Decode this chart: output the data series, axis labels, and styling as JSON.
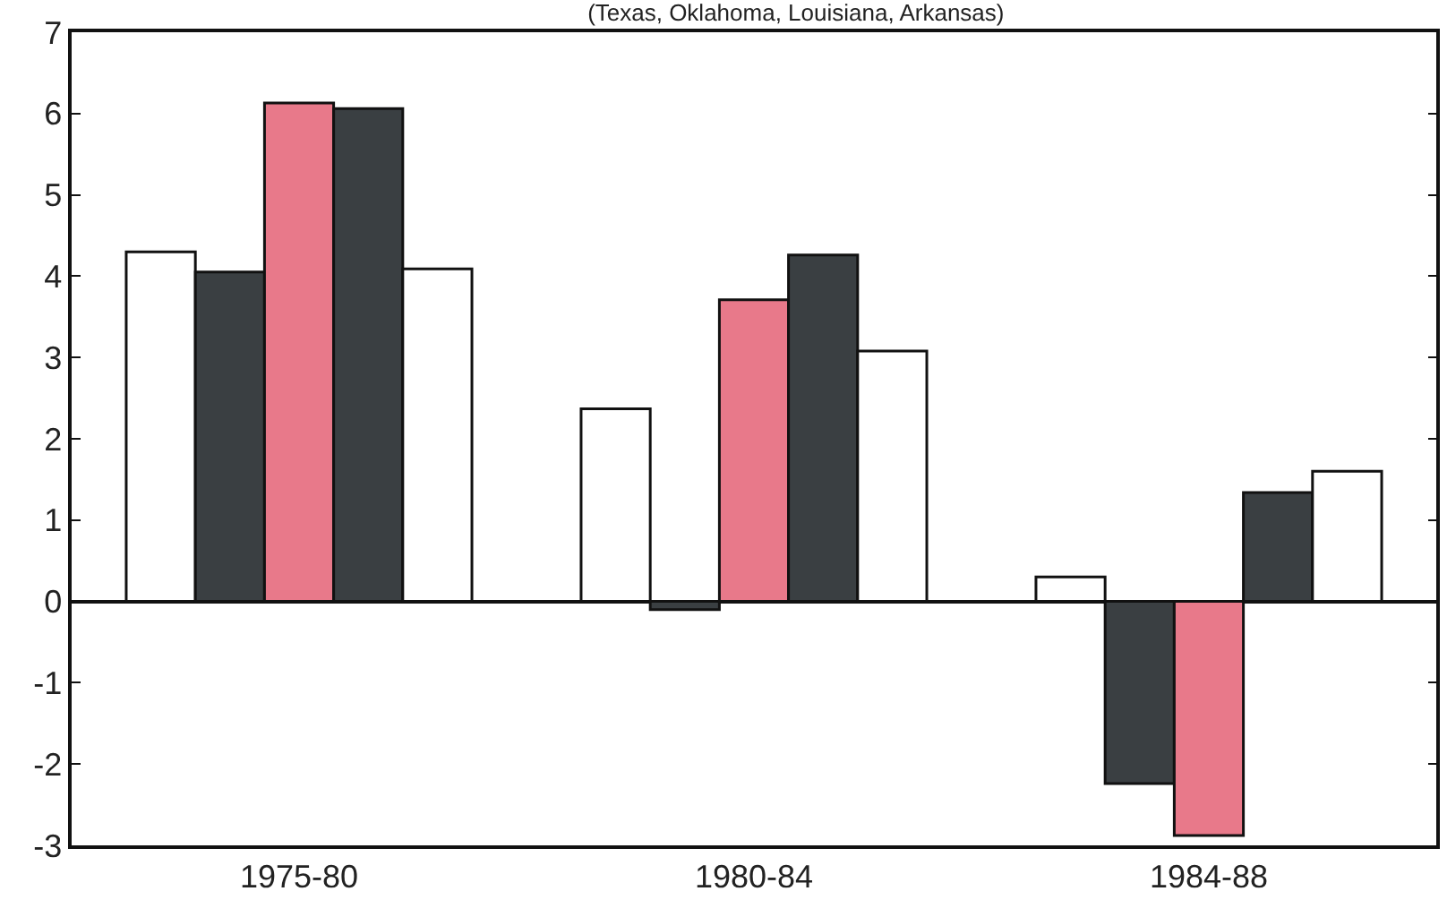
{
  "chart_data": {
    "type": "bar",
    "title": "(Texas, Oklahoma, Louisiana, Arkansas)",
    "categories": [
      "1975-80",
      "1980-84",
      "1984-88"
    ],
    "series": [
      {
        "color": "#ffffff",
        "values": [
          4.3,
          2.37,
          0.3
        ]
      },
      {
        "color": "#3a3f42",
        "values": [
          4.05,
          -0.1,
          -2.24
        ]
      },
      {
        "color": "#e8798a",
        "values": [
          6.13,
          3.71,
          -2.88
        ]
      },
      {
        "color": "#3a3f42",
        "values": [
          6.06,
          4.26,
          1.34
        ]
      },
      {
        "color": "#ffffff",
        "values": [
          4.09,
          3.08,
          1.6
        ]
      }
    ],
    "ylim": [
      -3,
      7
    ],
    "yticks": [
      -3,
      -2,
      -1,
      0,
      1,
      2,
      3,
      4,
      5,
      6,
      7
    ]
  }
}
